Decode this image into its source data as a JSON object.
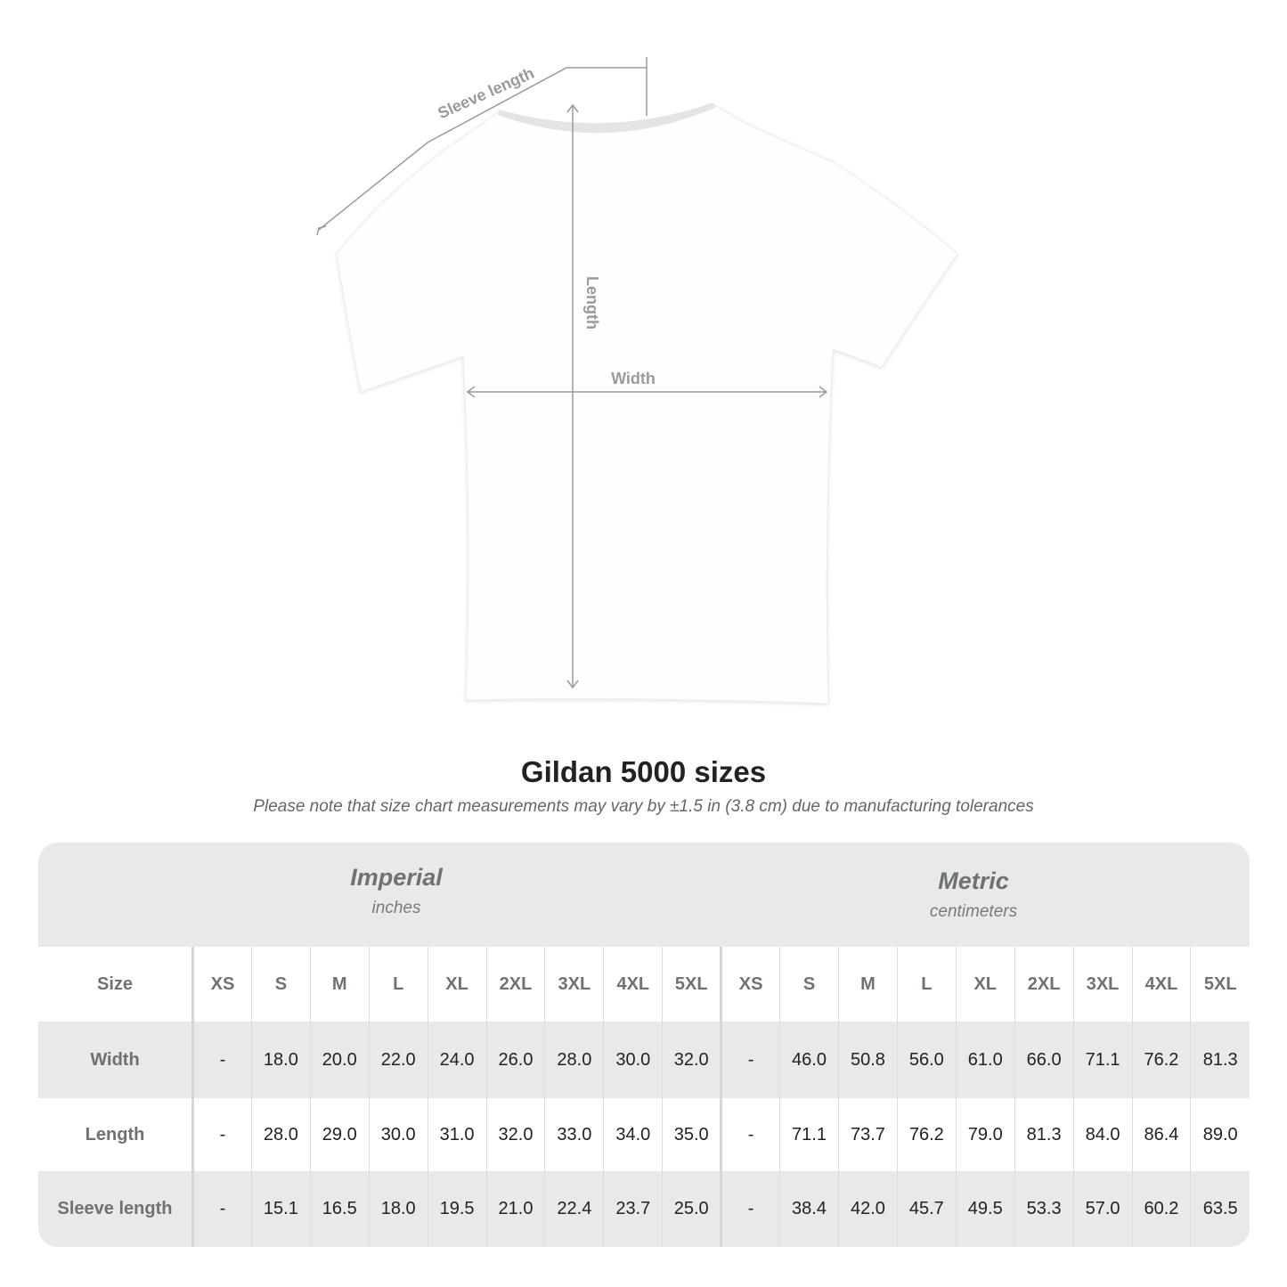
{
  "diagram": {
    "labels": {
      "sleeve": "Sleeve length",
      "length": "Length",
      "width": "Width"
    },
    "line_color": "#9a9a9a"
  },
  "title": "Gildan 5000 sizes",
  "subtitle": "Please note that size chart measurements may vary by ±1.5 in (3.8 cm) due to manufacturing tolerances",
  "table": {
    "imperial": {
      "system": "Imperial",
      "unit": "inches"
    },
    "metric": {
      "system": "Metric",
      "unit": "centimeters"
    },
    "size_label": "Size",
    "sizes": [
      "XS",
      "S",
      "M",
      "L",
      "XL",
      "2XL",
      "3XL",
      "4XL",
      "5XL"
    ],
    "rows": [
      {
        "label": "Width",
        "imperial": [
          "-",
          "18.0",
          "20.0",
          "22.0",
          "24.0",
          "26.0",
          "28.0",
          "30.0",
          "32.0"
        ],
        "metric": [
          "-",
          "46.0",
          "50.8",
          "56.0",
          "61.0",
          "66.0",
          "71.1",
          "76.2",
          "81.3"
        ]
      },
      {
        "label": "Length",
        "imperial": [
          "-",
          "28.0",
          "29.0",
          "30.0",
          "31.0",
          "32.0",
          "33.0",
          "34.0",
          "35.0"
        ],
        "metric": [
          "-",
          "71.1",
          "73.7",
          "76.2",
          "79.0",
          "81.3",
          "84.0",
          "86.4",
          "89.0"
        ]
      },
      {
        "label": "Sleeve length",
        "imperial": [
          "-",
          "15.1",
          "16.5",
          "18.0",
          "19.5",
          "21.0",
          "22.4",
          "23.7",
          "25.0"
        ],
        "metric": [
          "-",
          "38.4",
          "42.0",
          "45.7",
          "49.5",
          "53.3",
          "57.0",
          "60.2",
          "63.5"
        ]
      }
    ]
  }
}
